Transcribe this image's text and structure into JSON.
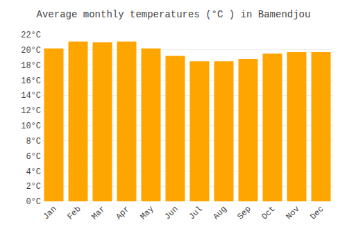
{
  "chart_data": {
    "type": "bar",
    "title": "Average monthly temperatures (°C ) in Bamendjou",
    "categories": [
      "Jan",
      "Feb",
      "Mar",
      "Apr",
      "May",
      "Jun",
      "Jul",
      "Aug",
      "Sep",
      "Oct",
      "Nov",
      "Dec"
    ],
    "values": [
      20.2,
      21.1,
      21.0,
      21.1,
      20.2,
      19.2,
      18.5,
      18.5,
      18.8,
      19.5,
      19.7,
      19.7
    ],
    "color": "#FFA500",
    "ylim": [
      0,
      22
    ],
    "yticks": [
      {
        "value": 0,
        "label": "0°C"
      },
      {
        "value": 2,
        "label": "2°C"
      },
      {
        "value": 4,
        "label": "4°C"
      },
      {
        "value": 6,
        "label": "6°C"
      },
      {
        "value": 8,
        "label": "8°C"
      },
      {
        "value": 10,
        "label": "10°C"
      },
      {
        "value": 12,
        "label": "12°C"
      },
      {
        "value": 14,
        "label": "14°C"
      },
      {
        "value": 16,
        "label": "16°C"
      },
      {
        "value": 18,
        "label": "18°C"
      },
      {
        "value": 20,
        "label": "20°C"
      },
      {
        "value": 22,
        "label": "22°C"
      }
    ],
    "grid": true
  }
}
